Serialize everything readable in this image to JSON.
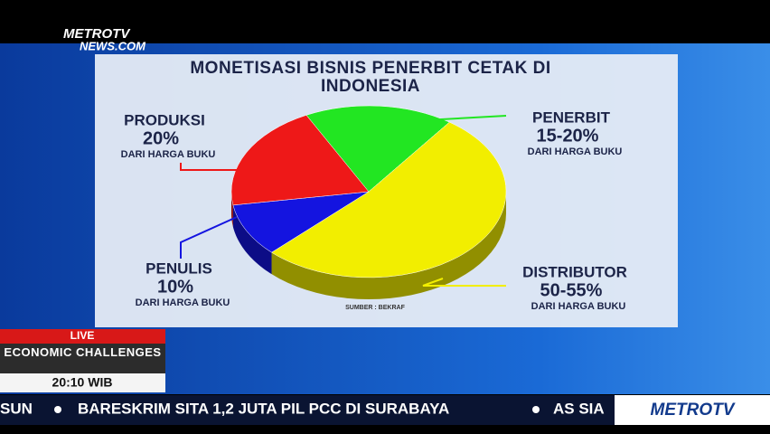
{
  "chart_data": {
    "type": "pie",
    "title": "MONETISASI BISNIS PENERBIT CETAK DI INDONESIA",
    "categories": [
      "PENERBIT",
      "DISTRIBUTOR",
      "PENULIS",
      "PRODUKSI"
    ],
    "values": [
      17.5,
      52.5,
      10,
      20
    ],
    "value_labels": [
      "15-20%",
      "50-55%",
      "10%",
      "20%"
    ],
    "colors": [
      "#22e622",
      "#f2ee00",
      "#1414e0",
      "#ee1818"
    ],
    "label_note": "DARI HARGA BUKU",
    "source": "SUMBER : BEKRAF"
  },
  "broadcast": {
    "logo_top_1": "METROTV",
    "logo_top_2": "NEWS.COM",
    "live": "LIVE",
    "program": "ECONOMIC CHALLENGES",
    "time": "20:10 WIB",
    "ticker": [
      "SUN",
      "BARESKRIM SITA 1,2 JUTA PIL PCC DI SURABAYA",
      "AS SIA"
    ],
    "logo_bottom": "METROTV"
  }
}
